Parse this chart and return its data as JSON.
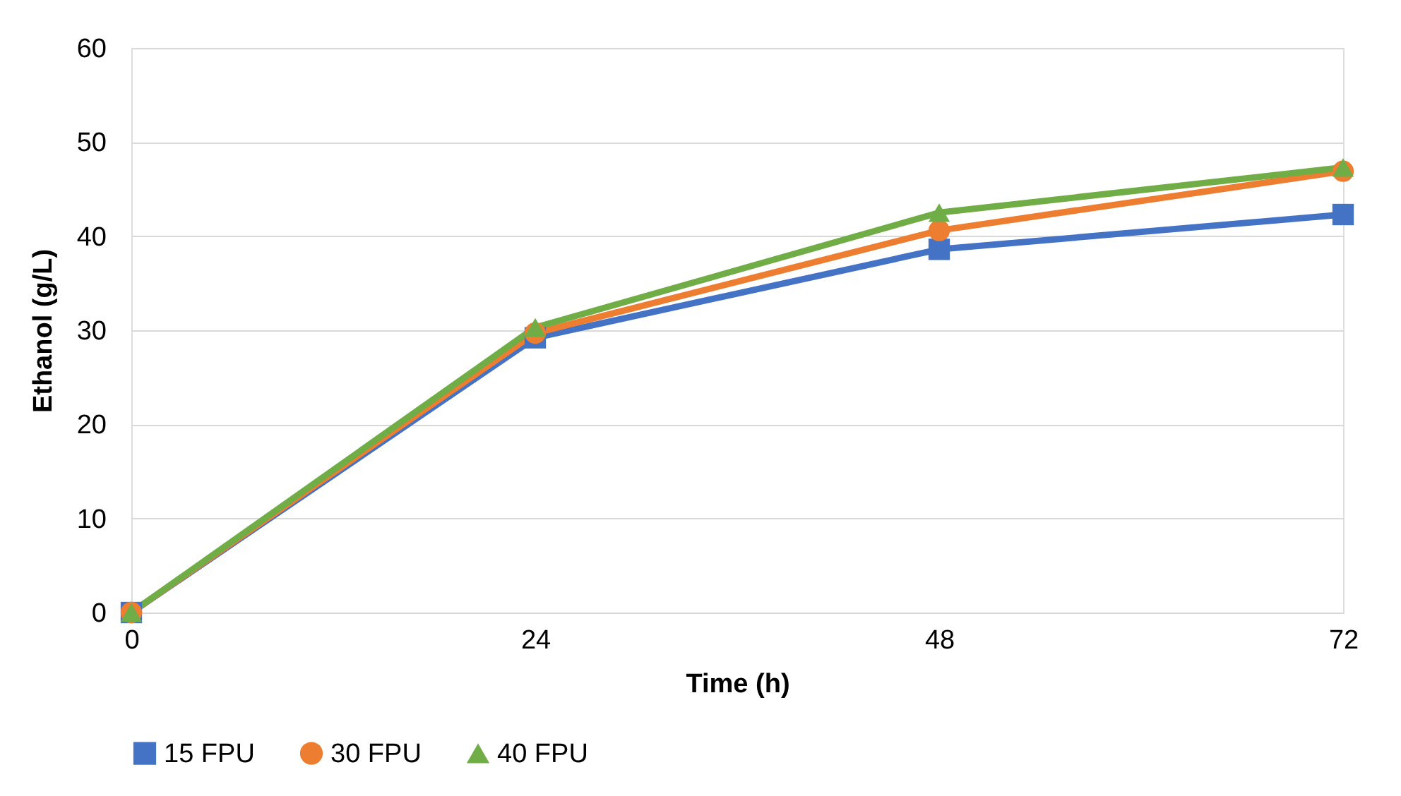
{
  "chart_data": {
    "type": "line",
    "xlabel": "Time (h)",
    "ylabel": "Ethanol (g/L)",
    "x": [
      0,
      24,
      48,
      72
    ],
    "xlim": [
      0,
      72
    ],
    "xticks": [
      0,
      24,
      48,
      72
    ],
    "ylim": [
      0,
      60
    ],
    "yticks": [
      0,
      10,
      20,
      30,
      40,
      50,
      60
    ],
    "grid": "y",
    "legend": "bottom",
    "series": [
      {
        "name": "15 FPU",
        "color": "#4472c4",
        "marker": "square",
        "values": [
          0,
          29.2,
          38.6,
          42.3
        ]
      },
      {
        "name": "30 FPU",
        "color": "#ed7d31",
        "marker": "circle",
        "values": [
          0,
          29.7,
          40.6,
          46.9
        ]
      },
      {
        "name": "40 FPU",
        "color": "#70ad47",
        "marker": "triangle",
        "values": [
          0,
          30.3,
          42.5,
          47.3
        ]
      }
    ]
  }
}
